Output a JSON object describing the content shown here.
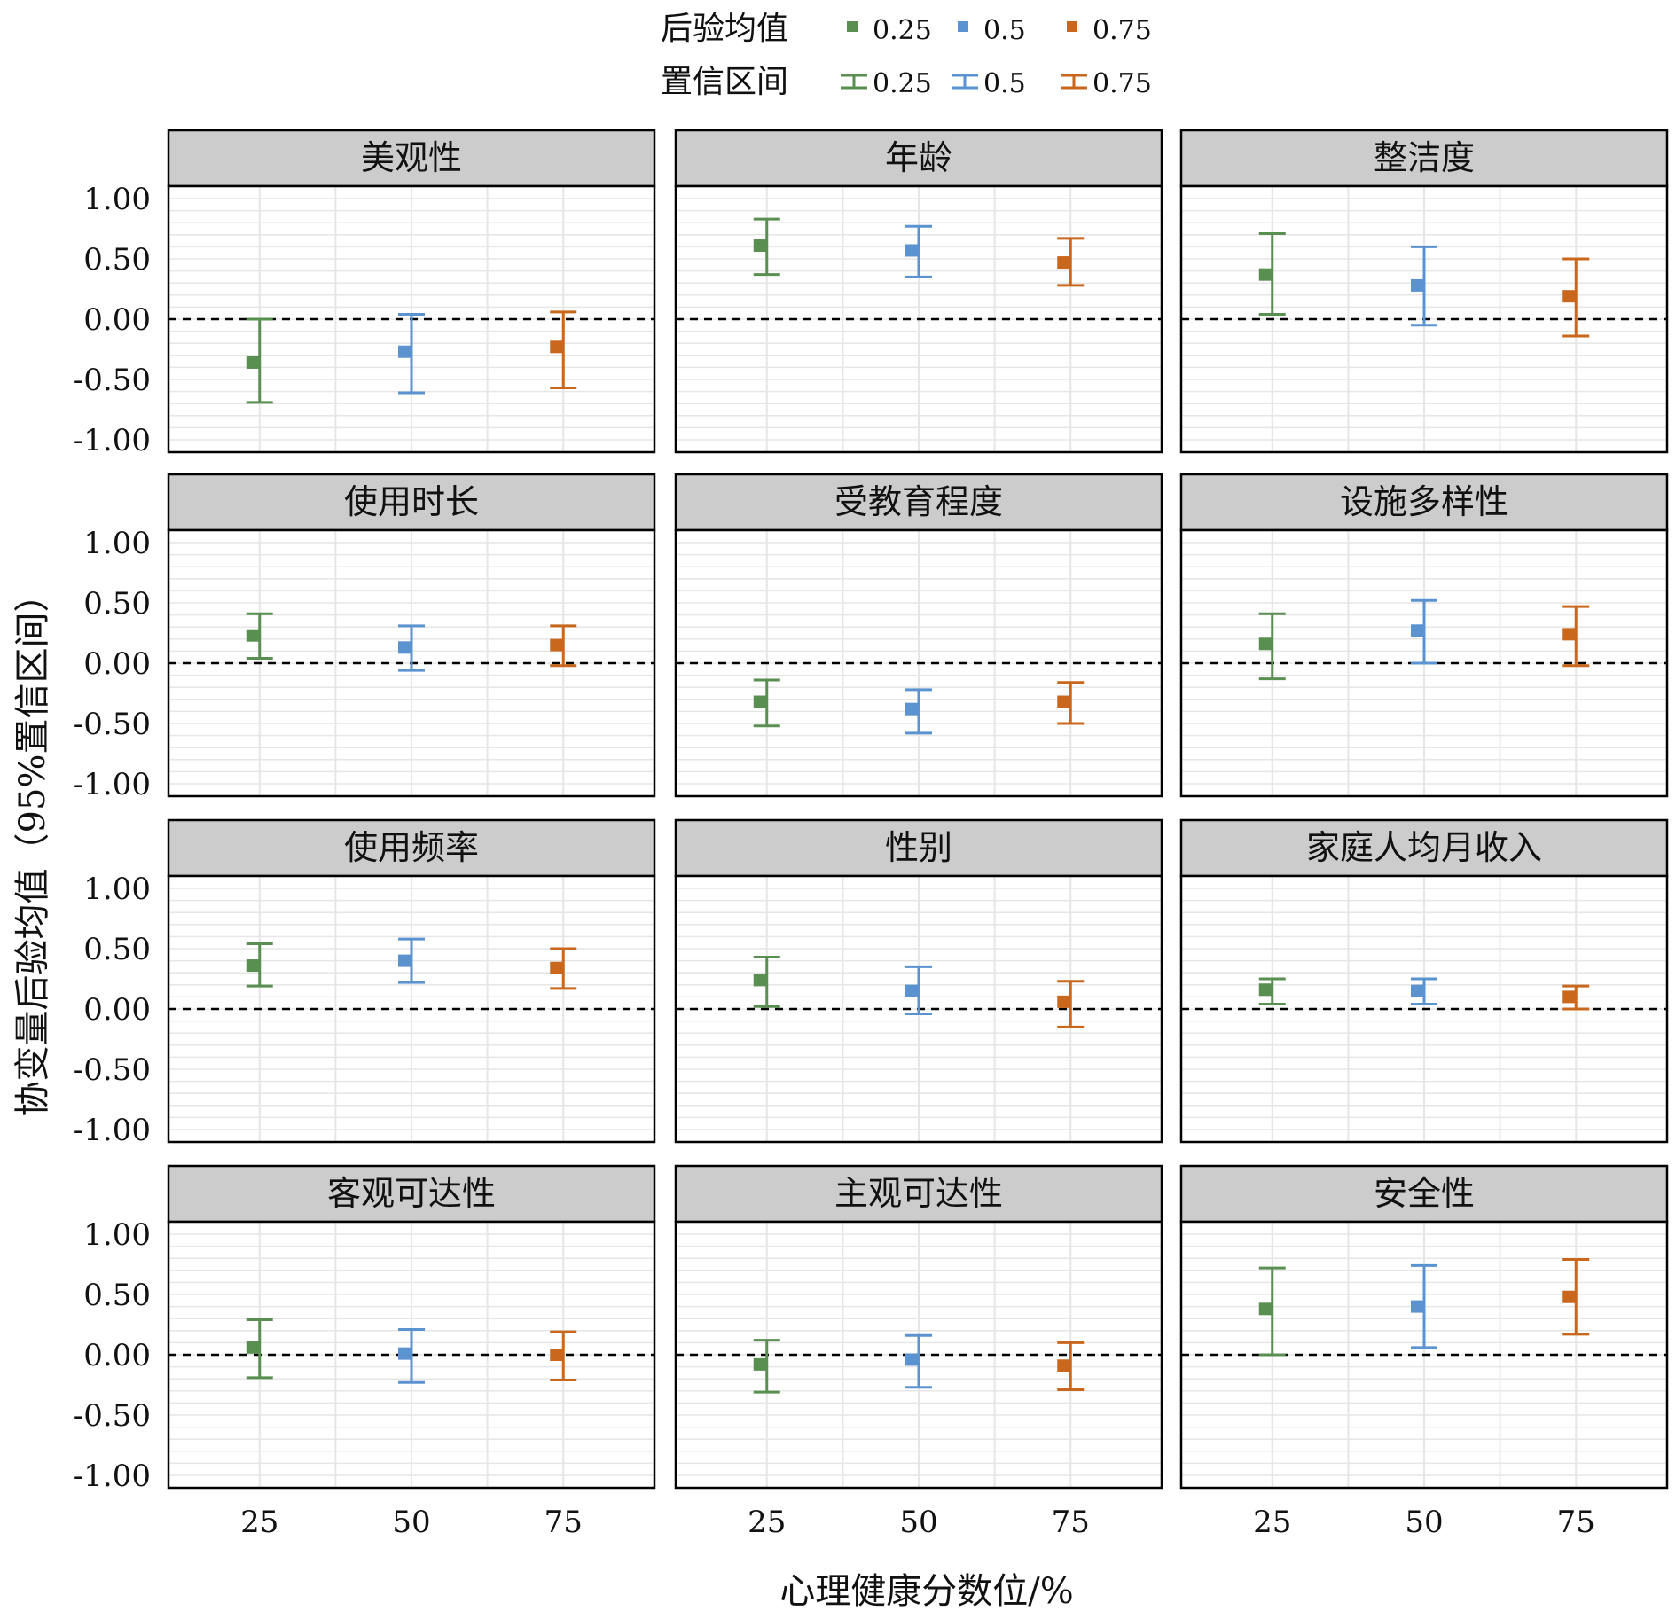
{
  "legend": {
    "mean_title": "后验均值",
    "ci_title": "置信区间",
    "colors": [
      "#5a8f52",
      "#5b93d0",
      "#c9671d"
    ],
    "labels": [
      "0.25",
      "0.5",
      "0.75"
    ]
  },
  "chart_data": {
    "type": "scatter",
    "xlabel": "心理健康分数位/%",
    "ylabel": "协变量后验均值（95%置信区间）",
    "x_ticks": [
      25,
      50,
      75
    ],
    "y_ticks": [
      "1.00",
      "0.50",
      "0.00",
      "-0.50",
      "-1.00"
    ],
    "ylim": [
      -1,
      1
    ],
    "series_names": [
      "0.25",
      "0.5",
      "0.75"
    ],
    "reference_line": 0,
    "panels": [
      {
        "title": "美观性",
        "x": [
          25,
          50,
          75
        ],
        "mean": [
          -0.36,
          -0.27,
          -0.23
        ],
        "lower": [
          -0.69,
          -0.61,
          -0.57
        ],
        "upper": [
          0.0,
          0.04,
          0.06
        ]
      },
      {
        "title": "年龄",
        "x": [
          25,
          50,
          75
        ],
        "mean": [
          0.61,
          0.57,
          0.47
        ],
        "lower": [
          0.37,
          0.35,
          0.28
        ],
        "upper": [
          0.83,
          0.77,
          0.67
        ]
      },
      {
        "title": "整洁度",
        "x": [
          25,
          50,
          75
        ],
        "mean": [
          0.37,
          0.28,
          0.19
        ],
        "lower": [
          0.04,
          -0.05,
          -0.14
        ],
        "upper": [
          0.71,
          0.6,
          0.5
        ]
      },
      {
        "title": "使用时长",
        "x": [
          25,
          50,
          75
        ],
        "mean": [
          0.23,
          0.13,
          0.15
        ],
        "lower": [
          0.04,
          -0.06,
          -0.02
        ],
        "upper": [
          0.41,
          0.31,
          0.31
        ]
      },
      {
        "title": "受教育程度",
        "x": [
          25,
          50,
          75
        ],
        "mean": [
          -0.32,
          -0.38,
          -0.32
        ],
        "lower": [
          -0.52,
          -0.58,
          -0.5
        ],
        "upper": [
          -0.14,
          -0.22,
          -0.16
        ]
      },
      {
        "title": "设施多样性",
        "x": [
          25,
          50,
          75
        ],
        "mean": [
          0.16,
          0.27,
          0.24
        ],
        "lower": [
          -0.13,
          0.0,
          -0.02
        ],
        "upper": [
          0.41,
          0.52,
          0.47
        ]
      },
      {
        "title": "使用频率",
        "x": [
          25,
          50,
          75
        ],
        "mean": [
          0.36,
          0.4,
          0.34
        ],
        "lower": [
          0.19,
          0.22,
          0.17
        ],
        "upper": [
          0.54,
          0.58,
          0.5
        ]
      },
      {
        "title": "性别",
        "x": [
          25,
          50,
          75
        ],
        "mean": [
          0.24,
          0.15,
          0.06
        ],
        "lower": [
          0.02,
          -0.04,
          -0.15
        ],
        "upper": [
          0.43,
          0.35,
          0.23
        ]
      },
      {
        "title": "家庭人均月收入",
        "x": [
          25,
          50,
          75
        ],
        "mean": [
          0.16,
          0.15,
          0.1
        ],
        "lower": [
          0.04,
          0.04,
          0.0
        ],
        "upper": [
          0.25,
          0.25,
          0.19
        ]
      },
      {
        "title": "客观可达性",
        "x": [
          25,
          50,
          75
        ],
        "mean": [
          0.06,
          0.01,
          0.0
        ],
        "lower": [
          -0.19,
          -0.23,
          -0.21
        ],
        "upper": [
          0.29,
          0.21,
          0.19
        ]
      },
      {
        "title": "主观可达性",
        "x": [
          25,
          50,
          75
        ],
        "mean": [
          -0.08,
          -0.04,
          -0.09
        ],
        "lower": [
          -0.31,
          -0.27,
          -0.29
        ],
        "upper": [
          0.12,
          0.16,
          0.1
        ]
      },
      {
        "title": "安全性",
        "x": [
          25,
          50,
          75
        ],
        "mean": [
          0.38,
          0.4,
          0.48
        ],
        "lower": [
          0.0,
          0.06,
          0.17
        ],
        "upper": [
          0.72,
          0.74,
          0.79
        ]
      }
    ]
  }
}
